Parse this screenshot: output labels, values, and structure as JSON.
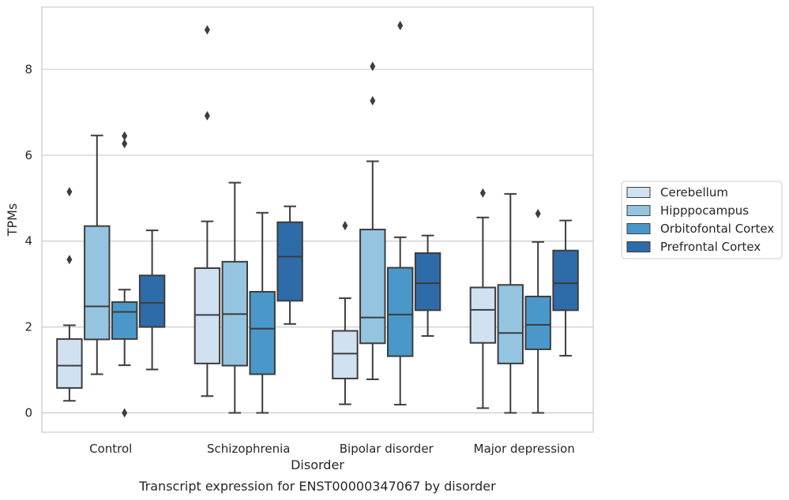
{
  "chart_data": {
    "type": "boxplot",
    "xlabel": "Disorder",
    "ylabel": "TPMs",
    "caption": "Transcript expression for ENST00000347067 by disorder",
    "ylim": [
      -0.45,
      9.45
    ],
    "yticks": [
      0,
      2,
      4,
      6,
      8
    ],
    "grid": "horizontal",
    "legend_position": "right",
    "categories": [
      "Control",
      "Schizophrenia",
      "Bipolar disorder",
      "Major depression"
    ],
    "series": [
      {
        "name": "Cerebellum",
        "color": "#d0e1f2",
        "boxes": [
          {
            "whislo": 0.28,
            "q1": 0.58,
            "med": 1.1,
            "q3": 1.72,
            "whishi": 2.04,
            "fliers": [
              3.57,
              5.15
            ]
          },
          {
            "whislo": 0.39,
            "q1": 1.15,
            "med": 2.28,
            "q3": 3.37,
            "whishi": 4.46,
            "fliers": [
              6.92,
              8.92
            ]
          },
          {
            "whislo": 0.2,
            "q1": 0.8,
            "med": 1.38,
            "q3": 1.91,
            "whishi": 2.67,
            "fliers": [
              4.36
            ]
          },
          {
            "whislo": 0.11,
            "q1": 1.63,
            "med": 2.4,
            "q3": 2.92,
            "whishi": 4.55,
            "fliers": [
              5.12
            ]
          }
        ]
      },
      {
        "name": "Hipppocampus",
        "color": "#94c4df",
        "boxes": [
          {
            "whislo": 0.9,
            "q1": 1.71,
            "med": 2.48,
            "q3": 4.35,
            "whishi": 6.46,
            "fliers": []
          },
          {
            "whislo": 0.0,
            "q1": 1.1,
            "med": 2.3,
            "q3": 3.52,
            "whishi": 5.36,
            "fliers": []
          },
          {
            "whislo": 0.78,
            "q1": 1.62,
            "med": 2.22,
            "q3": 4.27,
            "whishi": 5.86,
            "fliers": [
              7.27,
              8.07
            ]
          },
          {
            "whislo": 0.0,
            "q1": 1.15,
            "med": 1.86,
            "q3": 2.98,
            "whishi": 5.1,
            "fliers": []
          }
        ]
      },
      {
        "name": "Orbitofontal Cortex",
        "color": "#4a98c9",
        "boxes": [
          {
            "whislo": 1.11,
            "q1": 1.72,
            "med": 2.35,
            "q3": 2.58,
            "whishi": 2.87,
            "fliers": [
              0.0,
              6.27,
              6.45
            ]
          },
          {
            "whislo": 0.0,
            "q1": 0.9,
            "med": 1.96,
            "q3": 2.82,
            "whishi": 4.66,
            "fliers": []
          },
          {
            "whislo": 0.19,
            "q1": 1.32,
            "med": 2.29,
            "q3": 3.38,
            "whishi": 4.09,
            "fliers": [
              9.02
            ]
          },
          {
            "whislo": 0.0,
            "q1": 1.48,
            "med": 2.05,
            "q3": 2.71,
            "whishi": 3.98,
            "fliers": [
              4.64
            ]
          }
        ]
      },
      {
        "name": "Prefrontal Cortex",
        "color": "#2e6ba9",
        "boxes": [
          {
            "whislo": 1.01,
            "q1": 2.0,
            "med": 2.56,
            "q3": 3.2,
            "whishi": 4.25,
            "fliers": []
          },
          {
            "whislo": 2.07,
            "q1": 2.61,
            "med": 3.64,
            "q3": 4.44,
            "whishi": 4.81,
            "fliers": []
          },
          {
            "whislo": 1.79,
            "q1": 2.39,
            "med": 3.02,
            "q3": 3.72,
            "whishi": 4.13,
            "fliers": []
          },
          {
            "whislo": 1.33,
            "q1": 2.39,
            "med": 3.02,
            "q3": 3.78,
            "whishi": 4.48,
            "fliers": []
          }
        ]
      }
    ]
  }
}
